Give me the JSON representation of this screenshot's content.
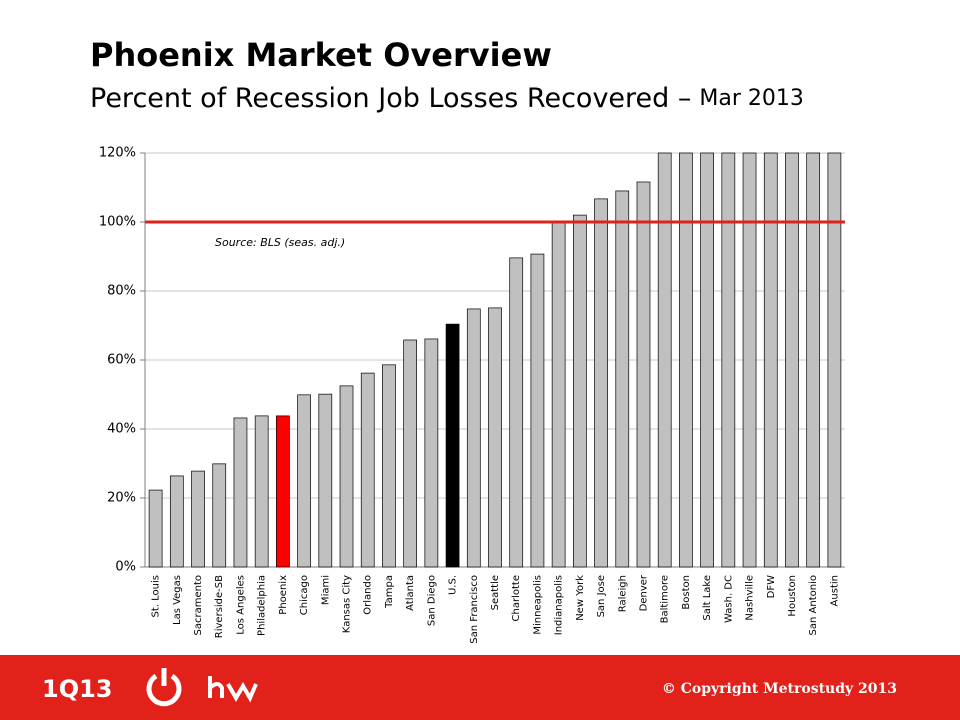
{
  "chart_data": {
    "type": "bar",
    "title": "Phoenix Market Overview",
    "subtitle": "Percent of Recession Job Losses Recovered –",
    "subtitle_date": "Mar 2013",
    "annotation": "Source: BLS (seas. adj.)",
    "categories": [
      "St. Louis",
      "Las Vegas",
      "Sacramento",
      "Riverside-SB",
      "Los Angeles",
      "Philadelphia",
      "Phoenix",
      "Chicago",
      "Miami",
      "Kansas City",
      "Orlando",
      "Tampa",
      "Atlanta",
      "San Diego",
      "U.S.",
      "San Francisco",
      "Seattle",
      "Charlotte",
      "Minneapolis",
      "Indianapolis",
      "New York",
      "San Jose",
      "Raleigh",
      "Denver",
      "Baltimore",
      "Boston",
      "Salt Lake",
      "Wash. DC",
      "Nashville",
      "DFW",
      "Houston",
      "San Antonio",
      "Austin"
    ],
    "values": [
      22.3,
      26.4,
      27.8,
      29.9,
      43.2,
      43.8,
      43.8,
      49.9,
      50.1,
      52.5,
      56.2,
      58.6,
      65.8,
      66.1,
      70.4,
      74.8,
      75.1,
      89.6,
      90.7,
      100,
      102,
      106.7,
      109,
      111.6,
      120,
      120,
      120,
      120,
      120,
      120,
      120,
      120,
      120
    ],
    "color": "#c0c0c0",
    "highlight_colors": {
      "Phoenix": "#ff0000",
      "U.S.": "#000000"
    },
    "ylim": [
      0,
      120
    ],
    "yticks": [
      {
        "value": 0,
        "label": "0%"
      },
      {
        "value": 20,
        "label": "20%"
      },
      {
        "value": 40,
        "label": "40%"
      },
      {
        "value": 60,
        "label": "60%"
      },
      {
        "value": 80,
        "label": "80%"
      },
      {
        "value": 100,
        "label": "100%"
      },
      {
        "value": 120,
        "label": "120%"
      }
    ],
    "grid": true,
    "reference_line": {
      "value": 100,
      "color": "#e3211b"
    }
  },
  "footer": {
    "quarter": "1Q13",
    "copyright": "© Copyright Metrostudy 2013"
  }
}
